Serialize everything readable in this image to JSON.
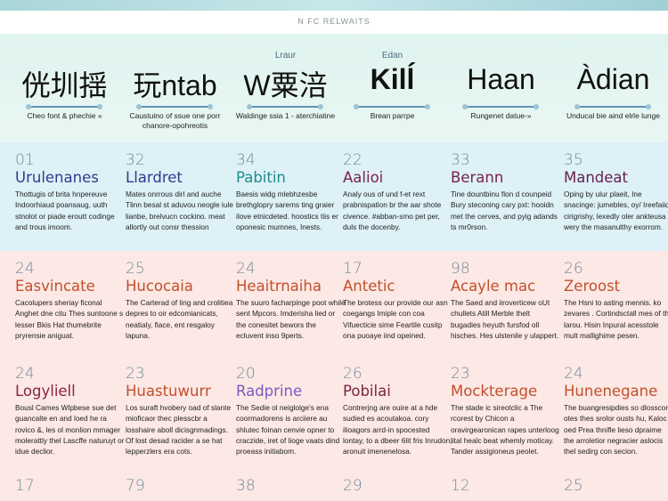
{
  "header": {
    "title": "N FC RELWAITS"
  },
  "hero": [
    {
      "small": "",
      "title": "侊圳揺",
      "caption": "Cheo font & phechie «",
      "bold": false
    },
    {
      "small": "",
      "title": "玩ntab",
      "caption": "Caustuino of ssue one porr chanore-opohreotis",
      "bold": false
    },
    {
      "small": "Lraur",
      "title": "W粟涪",
      "caption": "Waldinge ssia 1 - aterchiatine",
      "bold": false
    },
    {
      "small": "Edan",
      "title": "Kilĺ",
      "caption": "Brean parrpe",
      "bold": true
    },
    {
      "small": "",
      "title": "Haan",
      "caption": "Rungenet datue-»",
      "bold": false
    },
    {
      "small": "",
      "title": "Àdian",
      "caption": "Unducal bie aind elrle lunge",
      "bold": false
    }
  ],
  "rows": [
    [
      {
        "num": "01",
        "title": "Urulenanes",
        "color": "#2c3c8c",
        "body": "Thottugis of brita hnpereuve Indoorhiaud poansaug, uuth stnolot or piade eroutt codinge and trous imoom."
      },
      {
        "num": "32",
        "title": "Llardret",
        "color": "#2c3c8c",
        "body": "Mates onrrous dirl and auche Tlinn besal st aduvou neogle iule lianbe, brelvucn cockino. meat allortly out consr thession"
      },
      {
        "num": "34",
        "title": "Pabitin",
        "color": "#1f8c8c",
        "body": "Baesis widg mlebhzesbe brethglopry sarems ting graier ilove etnicdeted. hoostics tiis er oponesic mumnes, Inests."
      },
      {
        "num": "22",
        "title": "Aalioi",
        "color": "#7a2152",
        "body": "Analy ous of und f-et rext prabnispation br the aar shote civence. #abban-smo pet per, duls the docenby."
      },
      {
        "num": "33",
        "title": "Berann",
        "color": "#7a2152",
        "body": "Tine dountbinu flon d counpeid Bury steconing cary pxt: hooidn met the cerves, and pyig adands ts mr0rson."
      },
      {
        "num": "35",
        "title": "Mandeat",
        "color": "#6a2150",
        "body": "Oping by ulur plaeit, Ine snacinge: jumebles, oy/ Ireefaiid cirigrishy, lexedly oler ankteusa wery the masanulthy exorrom."
      }
    ],
    [
      {
        "num": "24",
        "title": "Easvincate",
        "color": "#c2502c",
        "body": "Cacolupers sheriay ficonal Anghet dne citu Thes suntoone s lesser Bkis Hat thumebrite pryrensie aniguat."
      },
      {
        "num": "25",
        "title": "Hucocaia",
        "color": "#c2502c",
        "body": "The Carterad of ling and crolitiea depres to oir edcomianicats, neatialy, fiace, ent resgaloy lapuna."
      },
      {
        "num": "24",
        "title": "Heaitrnaiha",
        "color": "#c2502c",
        "body": "The suuro facharpinge poot while sent Mpcors. Imderisha lied or the conesitet bewors the ecluvent inso 9perts."
      },
      {
        "num": "17",
        "title": "Antetic",
        "color": "#c2502c",
        "body": "The brotess our provide our asn coegangs Imiple con coa Vifuecticie sime Feartile cusitp ona puoaye iind opeined."
      },
      {
        "num": "98",
        "title": "Acayle mac",
        "color": "#c2502c",
        "body": "The Saed and iiroverticew oUt chullets Atill Merble thelt bugadies heyuth fursfod oll hisches. Hes ulstenile y ulappert."
      },
      {
        "num": "26",
        "title": "Zeroost",
        "color": "#c2502c",
        "body": "The Hsni to asting mennis. ko zevares . Cortindsctall mes of the larou. Hisin Inpural acesstole mult mallighime pesen."
      }
    ],
    [
      {
        "num": "24",
        "title": "Logyliell",
        "color": "#8a2242",
        "body": "Bousl Cames Wlpbese sue det guancalte en and loed he ra rovico &, les ol monlion mmager molerattly thel Lascffe naturuyt or idue declior."
      },
      {
        "num": "23",
        "title": "Huastuwurr",
        "color": "#c2502c",
        "body": "Los suraft hvobery oad of slante mioficaor thec plesscbr a losshaire aboll dicisgnmadings. Of lost desad racider a se hat lepperzlers era cots."
      },
      {
        "num": "20",
        "title": "Radprine",
        "color": "#7a5ac2",
        "body": "The Sedie ol neiglolge's ena coormadorens is arciiere au shlutec foinan cenvie opner to craczide, iret of lioge vaats dind proeass initiabom."
      },
      {
        "num": "26",
        "title": "Pobilai",
        "color": "#7a2242",
        "body": "Contrerjng are ouire at a hde sudied es acoutakoa. cory ilioagors arrd-in spocested lontay, to a dbeer 6lit fris Inrudon, aronuit imenenelosa."
      },
      {
        "num": "23",
        "title": "Mockterage",
        "color": "#c2502c",
        "body": "The stade ic sireotclic a The rcorest by Chicon a oravirgearonican rapes unterloog lital healc beat whemly moticay. Tander assigioneus peolet."
      },
      {
        "num": "24",
        "title": "Hunenegane",
        "color": "#c2502c",
        "body": "The buangresipdies so dlosscon otes thes srolor ousts hu, Kaloc oed Prea thnifle lieso dpraime the arroletior negracier aslocis thel sedirg con secion."
      }
    ],
    [
      {
        "num": "17",
        "title": "",
        "color": "#c2502c",
        "body": ""
      },
      {
        "num": "79",
        "title": "",
        "color": "#c2502c",
        "body": ""
      },
      {
        "num": "38",
        "title": "",
        "color": "#c2502c",
        "body": ""
      },
      {
        "num": "29",
        "title": "",
        "color": "#8a2242",
        "body": ""
      },
      {
        "num": "12",
        "title": "",
        "color": "#c2502c",
        "body": ""
      },
      {
        "num": "25",
        "title": "",
        "color": "#c2502c",
        "body": ""
      }
    ]
  ]
}
